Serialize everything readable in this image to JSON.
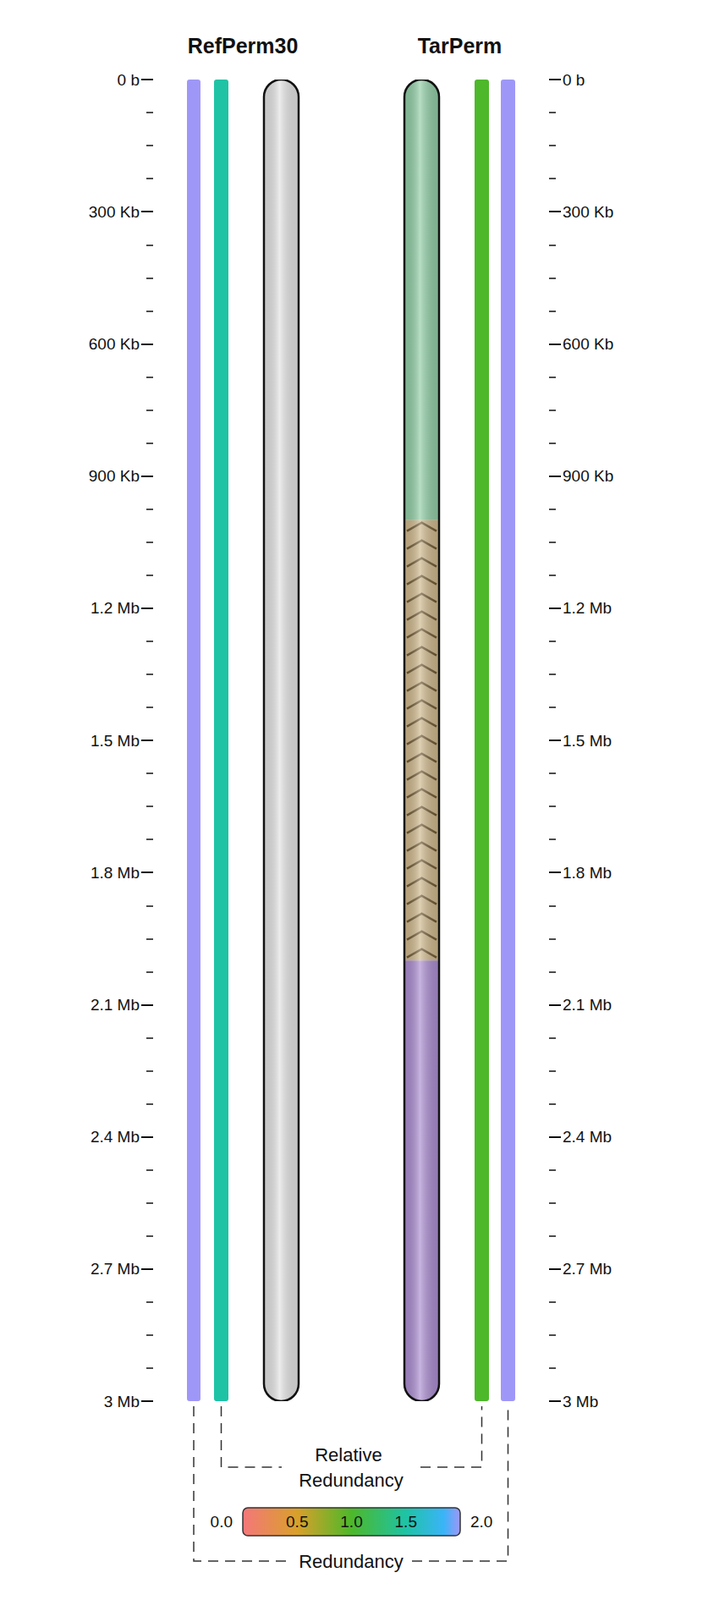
{
  "chart_data": {
    "type": "ideogram",
    "ylim": [
      0,
      3000000
    ],
    "yticks": [
      {
        "value": 0,
        "label": "0 b"
      },
      {
        "value": 300000,
        "label": "300 Kb"
      },
      {
        "value": 600000,
        "label": "600 Kb"
      },
      {
        "value": 900000,
        "label": "900 Kb"
      },
      {
        "value": 1200000,
        "label": "1.2 Mb"
      },
      {
        "value": 1500000,
        "label": "1.5 Mb"
      },
      {
        "value": 1800000,
        "label": "1.8 Mb"
      },
      {
        "value": 2100000,
        "label": "2.1 Mb"
      },
      {
        "value": 2400000,
        "label": "2.4 Mb"
      },
      {
        "value": 2700000,
        "label": "2.7 Mb"
      },
      {
        "value": 3000000,
        "label": "3 Mb"
      }
    ],
    "chromosomes": [
      {
        "name": "RefPerm30",
        "redundancy": 2.0,
        "relative_redundancy": 1.5,
        "segments": [
          {
            "start": 0,
            "end": 3000000,
            "color": "#e2e2e2"
          }
        ]
      },
      {
        "name": "TarPerm",
        "redundancy": 2.0,
        "relative_redundancy": 1.0,
        "segments": [
          {
            "start": 0,
            "end": 1000000,
            "color": "#8fcca4"
          },
          {
            "start": 1000000,
            "end": 2000000,
            "color": "#cdb68a",
            "inverted": true
          },
          {
            "start": 2000000,
            "end": 3000000,
            "color": "#a98bcf"
          }
        ]
      }
    ],
    "colorbar": {
      "range": [
        0,
        2
      ],
      "ticks": [
        {
          "value": 0,
          "label": "0.0"
        },
        0.5,
        {
          "value": 1,
          "label": "1.0"
        },
        1.5,
        {
          "value": 2,
          "label": "2.0"
        }
      ],
      "color_stops": [
        [
          0,
          "#f4777a"
        ],
        [
          0.5,
          "#d9a02a"
        ],
        [
          1,
          "#4db82a"
        ],
        [
          1.5,
          "#1ec3a5"
        ],
        [
          1.85,
          "#3ab4f8"
        ],
        [
          2,
          "#9f97f7"
        ]
      ]
    },
    "track_labels": {
      "relative_redundancy": "Relative Redundancy",
      "redundancy": "Redundancy"
    }
  }
}
